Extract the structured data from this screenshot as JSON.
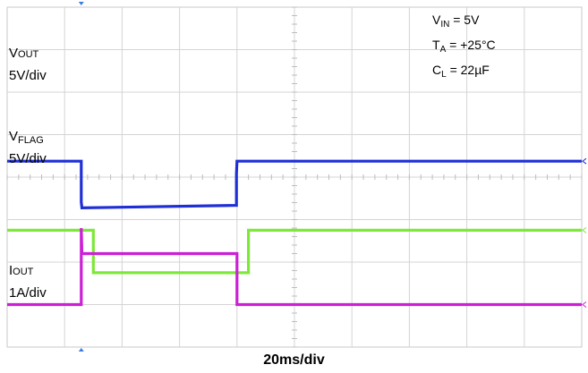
{
  "chart_data": {
    "type": "line",
    "title": "",
    "xlabel": "20ms/div",
    "xlim": [
      0,
      200
    ],
    "grid": true,
    "divisions": {
      "x": 10,
      "y": 8
    },
    "conditions": [
      {
        "sym": "V",
        "sub": "IN",
        "rest": " = 5V"
      },
      {
        "sym": "T",
        "sub": "A",
        "rest": " = +25°C"
      },
      {
        "sym": "C",
        "sub": "L",
        "rest": " = 22µF"
      }
    ],
    "series": [
      {
        "key": "vout",
        "label_sym": "V",
        "label_sub": "OUT",
        "scale": "5V/div",
        "color": "#1f2fd6",
        "x": [
          0,
          25.8,
          25.8,
          26,
          79.8,
          79.8,
          80,
          200
        ],
        "y": [
          5,
          5,
          0.2,
          -0.5,
          -0.2,
          3.5,
          5,
          5
        ]
      },
      {
        "key": "vflag",
        "label_sym": "V",
        "label_sub": "FLAG",
        "scale": "5V/div",
        "color": "#7ee83a",
        "x": [
          0,
          30,
          30,
          84,
          84,
          200
        ],
        "y": [
          5,
          5,
          0,
          0,
          5,
          5
        ]
      },
      {
        "key": "iout",
        "label_sym": "I",
        "label_sub": "OUT",
        "scale": "1A/div",
        "color": "#cc1fd6",
        "x": [
          0,
          25.8,
          25.8,
          26,
          80,
          80,
          200
        ],
        "y": [
          0,
          0,
          1.8,
          1.2,
          1.2,
          0,
          0
        ]
      }
    ]
  }
}
